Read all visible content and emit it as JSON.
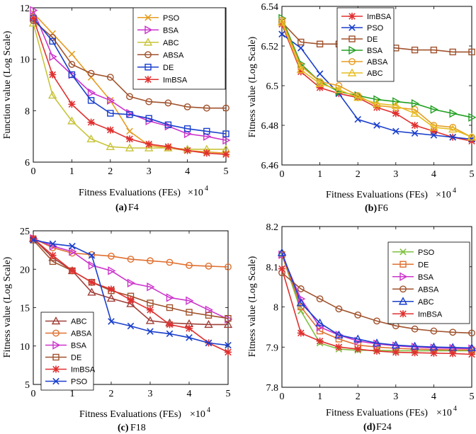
{
  "chart_data": [
    {
      "type": "line",
      "panel": "a",
      "caption_letter": "(a)",
      "caption_name": "F4",
      "xlabel": "Fitness Evaluations (FEs)",
      "x_multiplier": "×10",
      "x_exponent": "4",
      "ylabel": "Function value (Log Scale)",
      "xlim": [
        0,
        5
      ],
      "ylim": [
        6,
        12
      ],
      "xticks": [
        "0",
        "1",
        "2",
        "3",
        "4",
        "5"
      ],
      "yticks": [
        "6",
        "8",
        "10",
        "12"
      ],
      "legend_position": "top-right",
      "x": [
        0,
        0.5,
        1,
        1.5,
        2,
        2.5,
        3,
        3.5,
        4,
        4.5,
        5
      ],
      "series": [
        {
          "name": "PSO",
          "color": "#E69C22",
          "marker": "x",
          "values": [
            11.8,
            11.0,
            10.2,
            9.3,
            8.4,
            7.2,
            6.65,
            6.55,
            6.45,
            6.4,
            6.35
          ]
        },
        {
          "name": "BSA",
          "color": "#CC33CC",
          "marker": "triangle-right",
          "values": [
            11.9,
            10.1,
            9.4,
            8.7,
            8.4,
            7.9,
            7.6,
            7.4,
            7.1,
            7.0,
            6.85
          ]
        },
        {
          "name": "ABC",
          "color": "#C8C43A",
          "marker": "triangle-up",
          "values": [
            11.4,
            8.6,
            7.6,
            6.9,
            6.6,
            6.55,
            6.55,
            6.55,
            6.5,
            6.5,
            6.5
          ]
        },
        {
          "name": "ABSA",
          "color": "#A0522D",
          "marker": "circle",
          "values": [
            11.5,
            10.85,
            9.8,
            9.45,
            9.3,
            8.55,
            8.35,
            8.3,
            8.15,
            8.1,
            8.1
          ]
        },
        {
          "name": "DE",
          "color": "#1A3FCC",
          "marker": "square",
          "values": [
            11.6,
            10.7,
            9.4,
            8.4,
            7.9,
            7.85,
            7.7,
            7.45,
            7.3,
            7.2,
            7.1
          ]
        },
        {
          "name": "ImBSA",
          "color": "#E03030",
          "marker": "star",
          "values": [
            11.6,
            9.4,
            8.25,
            7.55,
            7.25,
            6.9,
            6.7,
            6.6,
            6.45,
            6.35,
            6.3
          ]
        }
      ]
    },
    {
      "type": "line",
      "panel": "b",
      "caption_letter": "(b)",
      "caption_name": "F6",
      "xlabel": "Fitness Evaluations (FEs)",
      "x_multiplier": "×10",
      "x_exponent": "4",
      "ylabel": "Fitness value (Log Scale)",
      "xlim": [
        0,
        5
      ],
      "ylim": [
        6.46,
        6.54
      ],
      "xticks": [
        "0",
        "1",
        "2",
        "3",
        "4",
        "5"
      ],
      "yticks": [
        "6.46",
        "6.48",
        "6.5",
        "6.52",
        "6.54"
      ],
      "legend_position": "top-right",
      "x": [
        0,
        0.5,
        1,
        1.5,
        2,
        2.5,
        3,
        3.5,
        4,
        4.5,
        5
      ],
      "series": [
        {
          "name": "ImBSA",
          "color": "#E03030",
          "marker": "star",
          "values": [
            6.531,
            6.507,
            6.499,
            6.496,
            6.494,
            6.489,
            6.486,
            6.48,
            6.477,
            6.474,
            6.472
          ]
        },
        {
          "name": "PSO",
          "color": "#1A3FCC",
          "marker": "x",
          "values": [
            6.526,
            6.519,
            6.506,
            6.496,
            6.483,
            6.48,
            6.477,
            6.476,
            6.475,
            6.474,
            6.473
          ]
        },
        {
          "name": "DE",
          "color": "#A0522D",
          "marker": "square",
          "values": [
            6.532,
            6.522,
            6.521,
            6.521,
            6.521,
            6.52,
            6.519,
            6.518,
            6.518,
            6.517,
            6.517
          ]
        },
        {
          "name": "BSA",
          "color": "#22A022",
          "marker": "triangle-right",
          "values": [
            6.534,
            6.511,
            6.502,
            6.497,
            6.495,
            6.493,
            6.492,
            6.491,
            6.488,
            6.486,
            6.484
          ]
        },
        {
          "name": "ABSA",
          "color": "#E69C22",
          "marker": "circle",
          "values": [
            6.533,
            6.51,
            6.502,
            6.5,
            6.495,
            6.49,
            6.489,
            6.488,
            6.48,
            6.479,
            6.474
          ]
        },
        {
          "name": "ABC",
          "color": "#E6BE22",
          "marker": "triangle-up",
          "values": [
            6.532,
            6.508,
            6.501,
            6.498,
            6.494,
            6.491,
            6.49,
            6.486,
            6.479,
            6.478,
            6.474
          ]
        }
      ]
    },
    {
      "type": "line",
      "panel": "c",
      "caption_letter": "(c)",
      "caption_name": "F18",
      "xlabel": "Fitness Evaluations (FEs)",
      "x_multiplier": "×10",
      "x_exponent": "4",
      "ylabel": "Fitness value (Log Scale)",
      "xlim": [
        0,
        5
      ],
      "ylim": [
        5,
        25
      ],
      "xticks": [
        "0",
        "1",
        "2",
        "3",
        "4",
        "5"
      ],
      "yticks": [
        "5",
        "10",
        "15",
        "20",
        "25"
      ],
      "legend_position": "bottom-left",
      "x": [
        0,
        0.5,
        1,
        1.5,
        2,
        2.5,
        3,
        3.5,
        4,
        4.5,
        5
      ],
      "series": [
        {
          "name": "ABC",
          "color": "#A0403A",
          "marker": "triangle-up",
          "values": [
            24.0,
            21.5,
            19.8,
            17.0,
            16.2,
            15.5,
            13.3,
            13.0,
            12.9,
            12.8,
            12.8
          ]
        },
        {
          "name": "ABSA",
          "color": "#E07030",
          "marker": "circle",
          "values": [
            24.0,
            22.8,
            22.1,
            21.9,
            21.7,
            21.3,
            21.1,
            20.9,
            20.5,
            20.4,
            20.3
          ]
        },
        {
          "name": "BSA",
          "color": "#CC33CC",
          "marker": "triangle-right",
          "values": [
            24.0,
            23.0,
            22.3,
            20.5,
            19.8,
            18.2,
            17.7,
            16.3,
            15.9,
            14.7,
            13.5
          ]
        },
        {
          "name": "DE",
          "color": "#A0522D",
          "marker": "square",
          "values": [
            23.8,
            21.0,
            19.8,
            18.3,
            17.2,
            16.5,
            15.6,
            15.0,
            14.4,
            14.0,
            13.6
          ]
        },
        {
          "name": "ImBSA",
          "color": "#E03030",
          "marker": "star",
          "values": [
            24.0,
            21.8,
            19.8,
            18.3,
            17.4,
            16.0,
            14.7,
            12.8,
            12.3,
            10.4,
            9.2
          ]
        },
        {
          "name": "PSO",
          "color": "#1A3FCC",
          "marker": "x",
          "values": [
            23.8,
            23.3,
            23.0,
            21.8,
            13.2,
            12.6,
            11.9,
            11.6,
            11.1,
            10.4,
            10.1
          ]
        }
      ]
    },
    {
      "type": "line",
      "panel": "d",
      "caption_letter": "(d)",
      "caption_name": "F24",
      "xlabel": "Fitness Evaluations (FEs)",
      "x_multiplier": "×10",
      "x_exponent": "4",
      "ylabel": "Fitness value (Log Scale)",
      "xlim": [
        0,
        5
      ],
      "ylim": [
        7.8,
        8.2
      ],
      "xticks": [
        "0",
        "1",
        "2",
        "3",
        "4",
        "5"
      ],
      "yticks": [
        "7.8",
        "7.9",
        "8",
        "8.1",
        "8.2"
      ],
      "legend_position": "top-right",
      "x": [
        0,
        0.5,
        1,
        1.5,
        2,
        2.5,
        3,
        3.5,
        4,
        4.5,
        5
      ],
      "series": [
        {
          "name": "PSO",
          "color": "#80C040",
          "marker": "x",
          "values": [
            8.13,
            7.99,
            7.91,
            7.895,
            7.892,
            7.892,
            7.891,
            7.891,
            7.891,
            7.891,
            7.891
          ]
        },
        {
          "name": "DE",
          "color": "#E07030",
          "marker": "square",
          "values": [
            8.13,
            8.0,
            7.94,
            7.92,
            7.905,
            7.9,
            7.897,
            7.895,
            7.894,
            7.893,
            7.893
          ]
        },
        {
          "name": "BSA",
          "color": "#CC33CC",
          "marker": "triangle-right",
          "values": [
            8.13,
            8.02,
            7.95,
            7.93,
            7.915,
            7.908,
            7.903,
            7.9,
            7.898,
            7.897,
            7.896
          ]
        },
        {
          "name": "ABSA",
          "color": "#A0522D",
          "marker": "circle",
          "values": [
            8.085,
            8.045,
            8.02,
            7.995,
            7.98,
            7.965,
            7.953,
            7.945,
            7.94,
            7.937,
            7.935
          ]
        },
        {
          "name": "ABC",
          "color": "#1A3FCC",
          "marker": "triangle-up",
          "values": [
            8.135,
            8.01,
            7.96,
            7.93,
            7.92,
            7.91,
            7.905,
            7.902,
            7.9,
            7.899,
            7.898
          ]
        },
        {
          "name": "ImBSA",
          "color": "#E03030",
          "marker": "star",
          "values": [
            8.095,
            7.935,
            7.915,
            7.9,
            7.895,
            7.89,
            7.887,
            7.886,
            7.885,
            7.884,
            7.882
          ]
        }
      ]
    }
  ]
}
